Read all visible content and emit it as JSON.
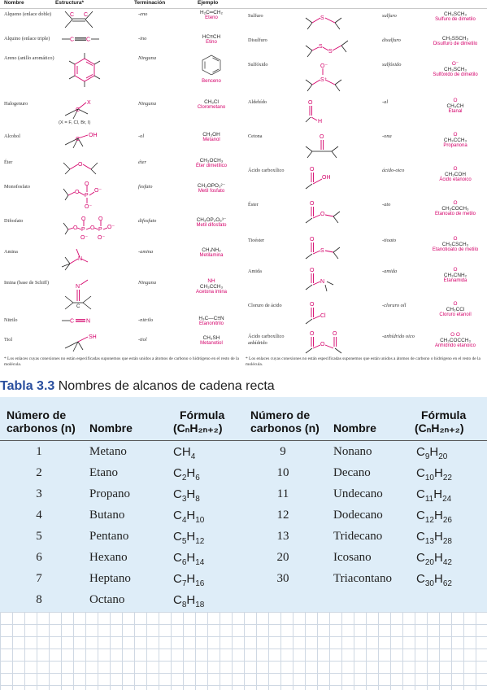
{
  "functional_groups": {
    "headers": {
      "name": "Nombre",
      "structure": "Estructura*",
      "ending": "Terminación",
      "example": "Ejemplo"
    },
    "left": [
      {
        "name": "Alqueno (enlace doble)",
        "ending": "-eno",
        "formula": "H₂C═CH₂",
        "example_name": "Eteno"
      },
      {
        "name": "Alquino (enlace triple)",
        "ending": "-ino",
        "formula": "HC≡CH",
        "example_name": "Etino"
      },
      {
        "name": "Areno (anillo aromático)",
        "ending": "Ninguna",
        "formula": "",
        "example_name": "Benceno"
      },
      {
        "name": "Halogenuro",
        "ending": "Ninguna",
        "formula": "CH₃Cl",
        "example_name": "Clorometano",
        "extra": "(X = F, Cl, Br, I)"
      },
      {
        "name": "Alcohol",
        "ending": "-ol",
        "formula": "CH₃OH",
        "example_name": "Metanol"
      },
      {
        "name": "Éter",
        "ending": "éter",
        "formula": "CH₃OCH₃",
        "example_name": "Éter dimetílico"
      },
      {
        "name": "Monofosfato",
        "ending": "fosfato",
        "formula": "CH₃OPO₃²⁻",
        "example_name": "Metil fosfato"
      },
      {
        "name": "Difosfato",
        "ending": "difosfato",
        "formula": "CH₃OP₂O₆³⁻",
        "example_name": "Metil difosfato"
      },
      {
        "name": "Amina",
        "ending": "-amina",
        "formula": "CH₃NH₂",
        "example_name": "Metilamina"
      },
      {
        "name": "Imina (base de Schiff)",
        "ending": "Ninguna",
        "formula": "CH₃CCH₃",
        "example_name": "Acetona imina"
      },
      {
        "name": "Nitrilo",
        "ending": "-nitrilo",
        "formula": "H₃C—C≡N",
        "example_name": "Etanonitrilo"
      },
      {
        "name": "Tiol",
        "ending": "-tiol",
        "formula": "CH₃SH",
        "example_name": "Metanotiol"
      }
    ],
    "right": [
      {
        "name": "Sulfuro",
        "ending": "sulfuro",
        "formula": "CH₃SCH₃",
        "example_name": "Sulfuro de dimetilo"
      },
      {
        "name": "Disulfuro",
        "ending": "disulfuro",
        "formula": "CH₃SSCH₃",
        "example_name": "Disulfuro de dimetilo"
      },
      {
        "name": "Sulfóxido",
        "ending": "sulfóxido",
        "formula": "CH₃SCH₃",
        "example_name": "Sulfóxido de dimetilo"
      },
      {
        "name": "Aldehído",
        "ending": "-al",
        "formula": "CH₃CH",
        "example_name": "Etanal"
      },
      {
        "name": "Cetona",
        "ending": "-ona",
        "formula": "CH₃CCH₃",
        "example_name": "Propanona"
      },
      {
        "name": "Ácido carboxílico",
        "ending": "ácido-oico",
        "formula": "CH₃COH",
        "example_name": "Ácido etanoico"
      },
      {
        "name": "Éster",
        "ending": "-ato",
        "formula": "CH₃COCH₃",
        "example_name": "Etanoato de metilo"
      },
      {
        "name": "Tioéster",
        "ending": "-tioato",
        "formula": "CH₃CSCH₃",
        "example_name": "Etanotioato de metilo"
      },
      {
        "name": "Amida",
        "ending": "-amida",
        "formula": "CH₃CNH₂",
        "example_name": "Etanamida"
      },
      {
        "name": "Cloruro de ácido",
        "ending": "-cloruro oíl",
        "formula": "CH₃CCl",
        "example_name": "Cloruro etanoíl"
      },
      {
        "name": "Ácido carboxílico anhídrido",
        "ending": "-anhídrido oico",
        "formula": "CH₃COCCH₃",
        "example_name": "Anhídrido etanoico"
      }
    ],
    "footnote": "* Los enlaces cuyas conexiones no están especificadas suponemos que están unidos a átomos de carbono o hidrógeno en el resto de la molécula."
  },
  "caption": {
    "label": "Tabla 3.3",
    "title": "Nombres de alcanos de cadena recta"
  },
  "alkane_table": {
    "headers": {
      "n_line1": "Número de",
      "n_line2": "carbonos (n)",
      "name": "Nombre",
      "formula_line1": "Fórmula",
      "formula_line2": "(CₙH₂ₙ₊₂)"
    },
    "rows": [
      {
        "n": "1",
        "name": "Metano",
        "c": "C",
        "cs": "",
        "h": "H",
        "hs": "4"
      },
      {
        "n": "2",
        "name": "Etano",
        "c": "C",
        "cs": "2",
        "h": "H",
        "hs": "6"
      },
      {
        "n": "3",
        "name": "Propano",
        "c": "C",
        "cs": "3",
        "h": "H",
        "hs": "8"
      },
      {
        "n": "4",
        "name": "Butano",
        "c": "C",
        "cs": "4",
        "h": "H",
        "hs": "10"
      },
      {
        "n": "5",
        "name": "Pentano",
        "c": "C",
        "cs": "5",
        "h": "H",
        "hs": "12"
      },
      {
        "n": "6",
        "name": "Hexano",
        "c": "C",
        "cs": "6",
        "h": "H",
        "hs": "14"
      },
      {
        "n": "7",
        "name": "Heptano",
        "c": "C",
        "cs": "7",
        "h": "H",
        "hs": "16"
      },
      {
        "n": "8",
        "name": "Octano",
        "c": "C",
        "cs": "8",
        "h": "H",
        "hs": "18"
      },
      {
        "n": "9",
        "name": "Nonano",
        "c": "C",
        "cs": "9",
        "h": "H",
        "hs": "20"
      },
      {
        "n": "10",
        "name": "Decano",
        "c": "C",
        "cs": "10",
        "h": "H",
        "hs": "22"
      },
      {
        "n": "11",
        "name": "Undecano",
        "c": "C",
        "cs": "11",
        "h": "H",
        "hs": "24"
      },
      {
        "n": "12",
        "name": "Dodecano",
        "c": "C",
        "cs": "12",
        "h": "H",
        "hs": "26"
      },
      {
        "n": "13",
        "name": "Tridecano",
        "c": "C",
        "cs": "13",
        "h": "H",
        "hs": "28"
      },
      {
        "n": "20",
        "name": "Icosano",
        "c": "C",
        "cs": "20",
        "h": "H",
        "hs": "42"
      },
      {
        "n": "30",
        "name": "Triacontano",
        "c": "C",
        "cs": "30",
        "h": "H",
        "hs": "62"
      }
    ]
  },
  "colors": {
    "example_pink": "#d4006a",
    "caption_blue": "#2a4f9e",
    "table_bg": "#deedf8"
  }
}
